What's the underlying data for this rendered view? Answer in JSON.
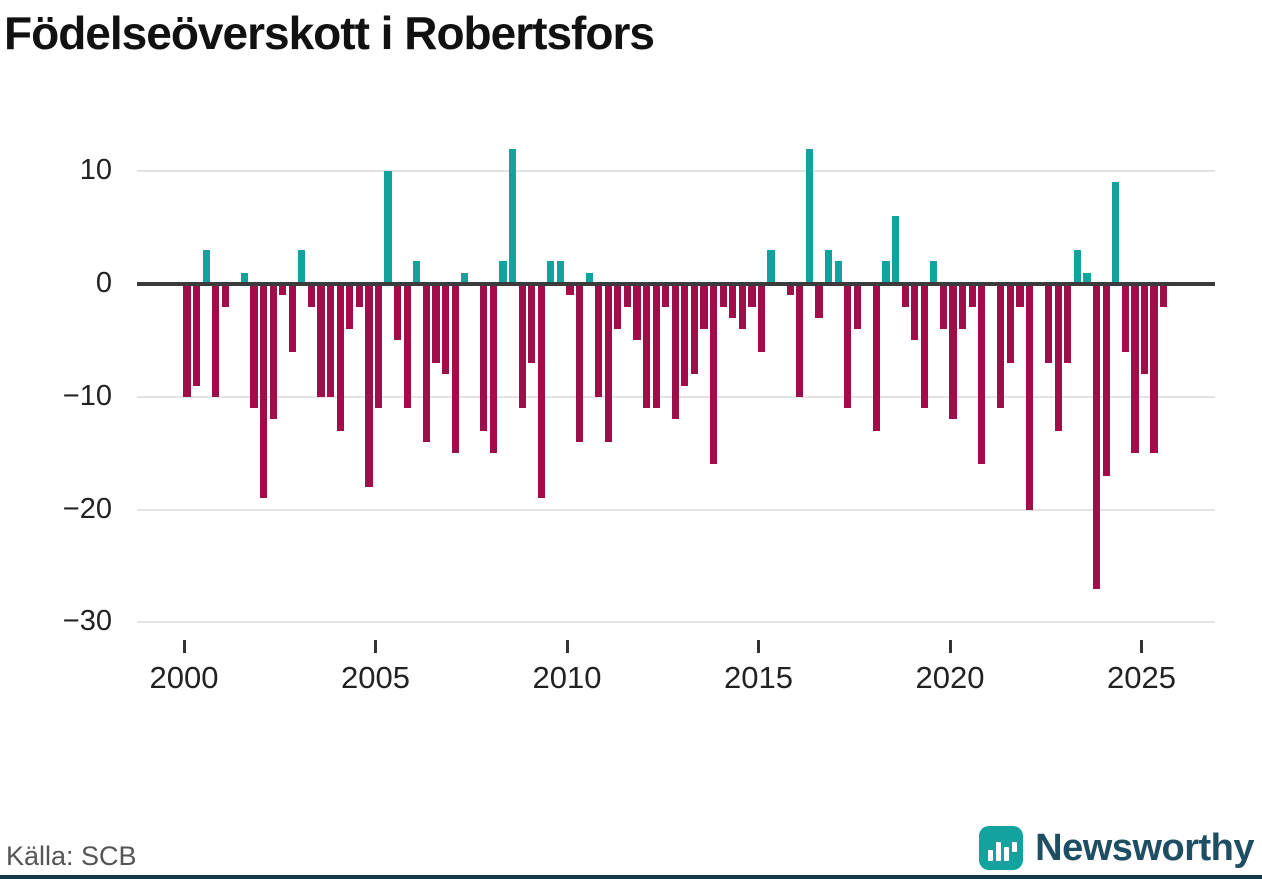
{
  "title": "Födelseöverskott i Robertsfors",
  "source": "Källa: SCB",
  "branding": {
    "wordmark": "Newsworthy",
    "icon": "bar-chart-logo-icon"
  },
  "colors": {
    "positive_bar": "#12a39e",
    "negative_bar": "#a00d49",
    "zero_axis": "#3b3b3b",
    "gridline": "#e4e4e4",
    "brand_teal": "#12a39e",
    "brand_dark": "#1d4e63",
    "footer_strip": "#12364a"
  },
  "chart_data": {
    "type": "bar",
    "title": "Födelseöverskott i Robertsfors",
    "x_unit": "quarter",
    "start": {
      "year": 2000,
      "quarter": 1
    },
    "end": {
      "year": 2025,
      "quarter": 3
    },
    "values": [
      -10,
      -9,
      3,
      -10,
      -2,
      0,
      1,
      -11,
      -19,
      -12,
      -1,
      -6,
      3,
      -2,
      -10,
      -10,
      -13,
      -4,
      -2,
      -18,
      -11,
      10,
      -5,
      -11,
      2,
      -14,
      -7,
      -8,
      -15,
      1,
      0,
      -13,
      -15,
      2,
      12,
      -11,
      -7,
      -19,
      2,
      2,
      -1,
      -14,
      1,
      -10,
      -14,
      -4,
      -2,
      -5,
      -11,
      -11,
      -2,
      -12,
      -9,
      -8,
      -4,
      -16,
      -2,
      -3,
      -4,
      -2,
      -6,
      3,
      0,
      -1,
      -10,
      12,
      -3,
      3,
      2,
      -11,
      -4,
      0,
      -13,
      2,
      6,
      -2,
      -5,
      -11,
      2,
      -4,
      -12,
      -4,
      -2,
      -16,
      0,
      -11,
      -7,
      -2,
      -20,
      0,
      -7,
      -13,
      -7,
      3,
      1,
      -27,
      -17,
      9,
      -6,
      -15,
      -8,
      -15,
      -2
    ],
    "y_ticks": [
      {
        "value": 10,
        "label": "10"
      },
      {
        "value": 0,
        "label": "0"
      },
      {
        "value": -10,
        "label": "−10"
      },
      {
        "value": -20,
        "label": "−20"
      },
      {
        "value": -30,
        "label": "−30"
      }
    ],
    "x_ticks": [
      {
        "year": 2000,
        "label": "2000"
      },
      {
        "year": 2005,
        "label": "2005"
      },
      {
        "year": 2010,
        "label": "2010"
      },
      {
        "year": 2015,
        "label": "2015"
      },
      {
        "year": 2020,
        "label": "2020"
      },
      {
        "year": 2025,
        "label": "2025"
      }
    ],
    "ylim": [
      -30,
      13
    ],
    "grid": "horizontal",
    "legend": "none"
  }
}
